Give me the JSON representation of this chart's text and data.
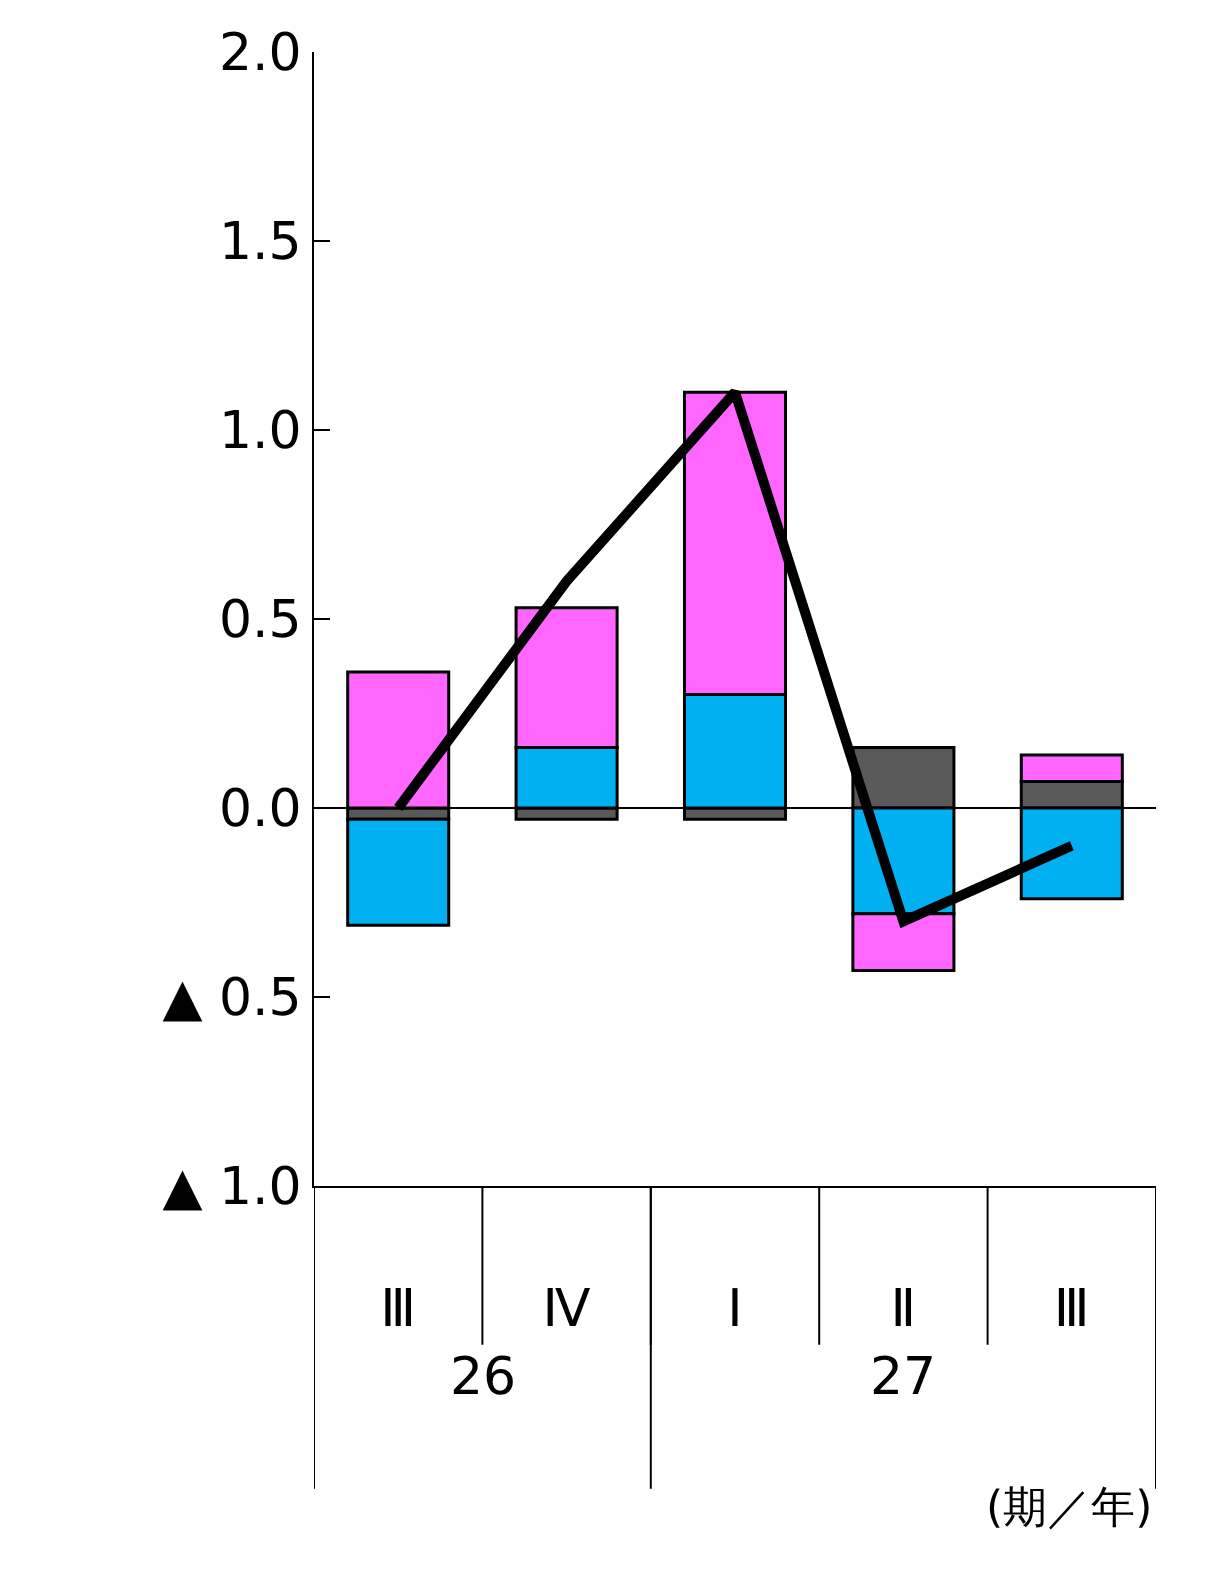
{
  "chart_data": {
    "type": "bar",
    "stacked": true,
    "categories": [
      "Ⅲ",
      "Ⅳ",
      "Ⅰ",
      "Ⅱ",
      "Ⅲ"
    ],
    "series": [
      {
        "color": "#595959",
        "values": [
          -0.03,
          -0.03,
          -0.03,
          0.16,
          0.07
        ]
      },
      {
        "color": "#00b0f0",
        "values": [
          -0.28,
          0.16,
          0.3,
          -0.28,
          -0.24
        ]
      },
      {
        "color": "#ff66ff",
        "values": [
          0.36,
          0.37,
          0.8,
          -0.15,
          0.07
        ]
      },
      {
        "type": "line",
        "color": "#000000",
        "values": [
          0.0,
          0.6,
          1.1,
          -0.3,
          -0.1
        ]
      }
    ],
    "ylim": [
      -1.0,
      2.0
    ],
    "yticks": [
      {
        "value": -1.0,
        "label": "▲ 1.0"
      },
      {
        "value": -0.5,
        "label": "▲ 0.5"
      },
      {
        "value": 0.0,
        "label": "0.0"
      },
      {
        "value": 0.5,
        "label": "0.5"
      },
      {
        "value": 1.0,
        "label": "1.0"
      },
      {
        "value": 1.5,
        "label": "1.5"
      },
      {
        "value": 2.0,
        "label": "2.0"
      }
    ],
    "annotations": [
      "26",
      "27",
      "(期／年)"
    ],
    "ref_lines": [
      {
        "axis": "y",
        "value": 0.0,
        "color": "#000000",
        "line_style": "solid"
      }
    ],
    "grid": false,
    "marker": "none",
    "line_style": "solid"
  }
}
